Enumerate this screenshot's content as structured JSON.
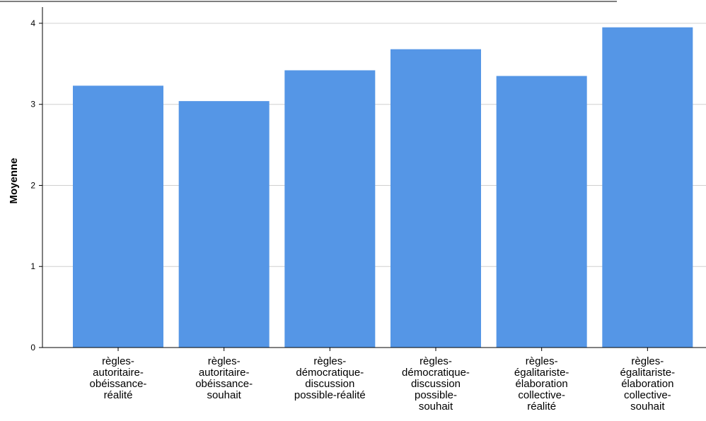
{
  "chart_data": {
    "type": "bar",
    "categories": [
      "règles-autoritaire-obéissance-réalité",
      "règles-autoritaire-obéissance-souhait",
      "règles-démocratique-discussion possible-réalité",
      "règles-démocratique-discussion possible-souhait",
      "règles-égalitariste-élaboration collective-réalité",
      "règles-égalitariste-élaboration collective-souhait"
    ],
    "category_label_lines": [
      [
        "règles-",
        "autoritaire-",
        "obéissance-",
        "réalité"
      ],
      [
        "règles-",
        "autoritaire-",
        "obéissance-",
        "souhait"
      ],
      [
        "règles-",
        "démocratique-",
        "discussion",
        "possible-réalité"
      ],
      [
        "règles-",
        "démocratique-",
        "discussion",
        "possible-",
        "souhait"
      ],
      [
        "règles-",
        "égalitariste-",
        "élaboration",
        "collective-",
        "réalité"
      ],
      [
        "règles-",
        "égalitariste-",
        "élaboration",
        "collective-",
        "souhait"
      ]
    ],
    "values": [
      3.23,
      3.04,
      3.42,
      3.68,
      3.35,
      3.95
    ],
    "ylabel": "Moyenne",
    "xlabel": "",
    "ylim": [
      0,
      4.2
    ],
    "yticks": [
      0,
      1,
      2,
      3,
      4
    ],
    "grid": true,
    "bar_color": "#5596E6",
    "grid_color": "#d0d0d0"
  }
}
